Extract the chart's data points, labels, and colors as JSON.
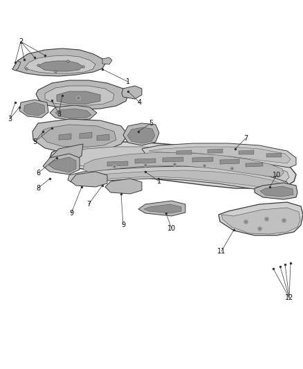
{
  "bg_color": "#ffffff",
  "ec": "#3a3a3a",
  "fc_light": "#d0d0d0",
  "fc_mid": "#b8b8b8",
  "fc_dark": "#909090",
  "fc_darker": "#707070",
  "lw_main": 0.7,
  "lw_thin": 0.45,
  "figsize": [
    4.38,
    5.33
  ],
  "dpi": 100,
  "callout_lw": 0.55,
  "callout_color": "#444444",
  "label_fs": 7.0,
  "label_fs_small": 6.5
}
